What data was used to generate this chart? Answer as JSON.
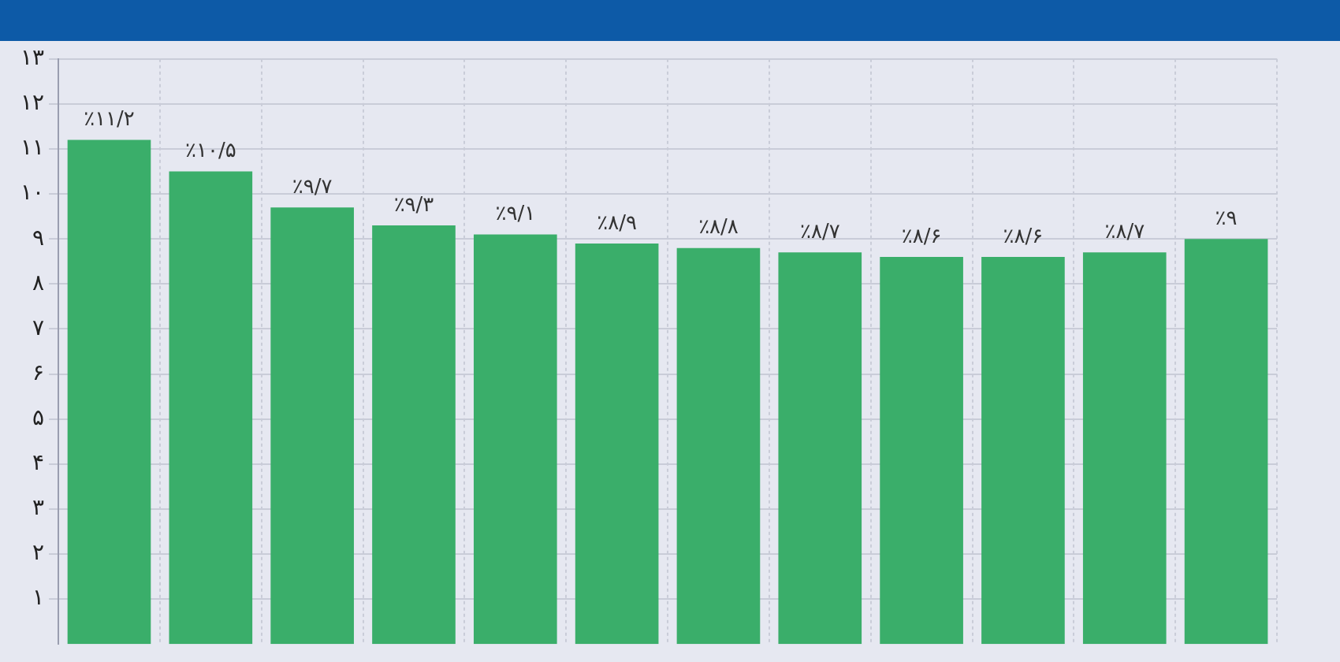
{
  "chart_data": {
    "type": "bar",
    "categories": [
      null,
      null,
      null,
      null,
      null,
      null,
      null,
      null,
      null,
      null,
      null,
      null
    ],
    "values": [
      11.2,
      10.5,
      9.7,
      9.3,
      9.1,
      8.9,
      8.8,
      8.7,
      8.6,
      8.6,
      8.7,
      9
    ],
    "value_labels": [
      "٪۱۱/۲",
      "٪۱۰/۵",
      "٪۹/۷",
      "٪۹/۳",
      "٪۹/۱",
      "٪۸/۹",
      "٪۸/۸",
      "٪۸/۷",
      "٪۸/۶",
      "٪۸/۶",
      "٪۸/۷",
      "٪۹"
    ],
    "color": "#3aae6a",
    "ylim": [
      0,
      13
    ],
    "yticks": [
      {
        "value": 1,
        "label": "۱"
      },
      {
        "value": 2,
        "label": "۲"
      },
      {
        "value": 3,
        "label": "۳"
      },
      {
        "value": 4,
        "label": "۴"
      },
      {
        "value": 5,
        "label": "۵"
      },
      {
        "value": 6,
        "label": "۶"
      },
      {
        "value": 7,
        "label": "۷"
      },
      {
        "value": 8,
        "label": "۸"
      },
      {
        "value": 9,
        "label": "۹"
      },
      {
        "value": 10,
        "label": "۱۰"
      },
      {
        "value": 11,
        "label": "۱۱"
      },
      {
        "value": 12,
        "label": "۱۲"
      },
      {
        "value": 13,
        "label": "۱۳"
      }
    ],
    "grid": true
  }
}
